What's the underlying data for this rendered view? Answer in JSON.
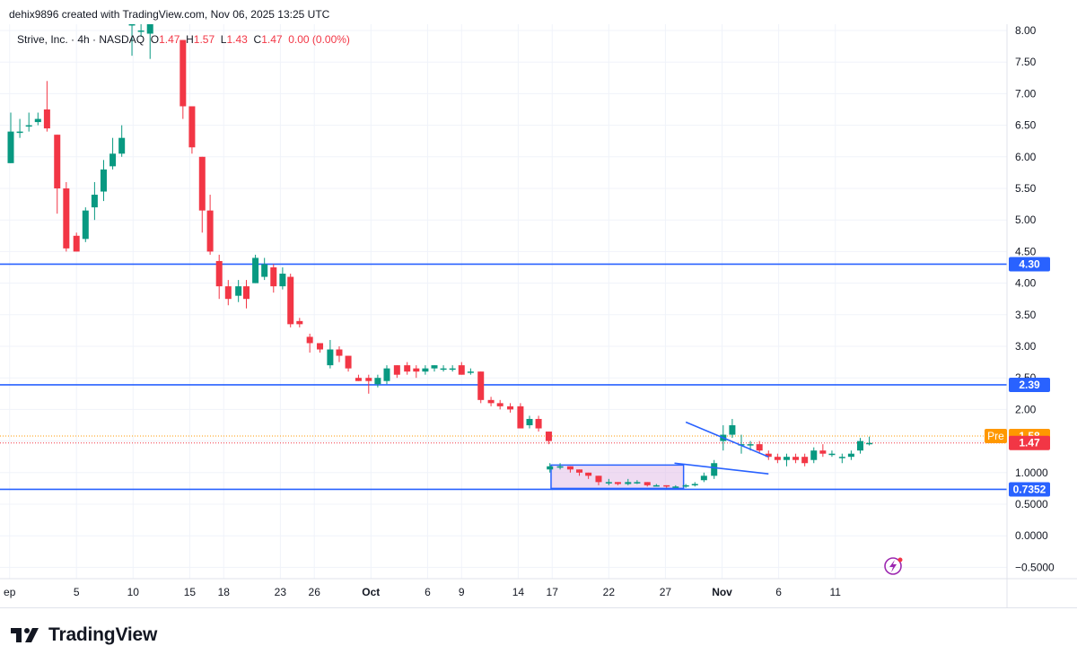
{
  "header": {
    "credit": "dehix9896 created with TradingView.com, Nov 06, 2025 13:25 UTC"
  },
  "legend": {
    "symbol": "Strive, Inc. · 4h · NASDAQ",
    "o_label": "O",
    "o_value": "1.47",
    "h_label": "H",
    "h_value": "1.57",
    "l_label": "L",
    "l_value": "1.43",
    "c_label": "C",
    "c_value": "1.47",
    "change": "0.00 (0.00%)"
  },
  "footer": {
    "brand": "TradingView"
  },
  "colors": {
    "up": "#089981",
    "down": "#f23645",
    "level": "#2962ff",
    "pre": "#ff9800",
    "grid": "#f0f3fa",
    "box_fill": "#e1bee7"
  },
  "chart_data": {
    "type": "candlestick",
    "ylim": [
      -0.6,
      8.05
    ],
    "y_ticks": [
      "8.00",
      "7.50",
      "7.00",
      "6.50",
      "6.00",
      "5.50",
      "5.00",
      "4.50",
      "4.00",
      "3.50",
      "3.00",
      "2.50",
      "2.00",
      "1.50",
      "1.0000",
      "0.5000",
      "0.0000",
      "−0.5000"
    ],
    "y_tick_values": [
      8,
      7.5,
      7,
      6.5,
      6,
      5.5,
      5,
      4.5,
      4,
      3.5,
      3,
      2.5,
      2,
      1.5,
      1,
      0.5,
      0,
      -0.5
    ],
    "x_ticks": [
      {
        "label": "ep",
        "day": -0.9
      },
      {
        "label": "5",
        "day": 5
      },
      {
        "label": "10",
        "day": 10
      },
      {
        "label": "15",
        "day": 15
      },
      {
        "label": "18",
        "day": 18
      },
      {
        "label": "23",
        "day": 23
      },
      {
        "label": "26",
        "day": 26
      },
      {
        "label": "Oct",
        "day": 31
      },
      {
        "label": "6",
        "day": 36
      },
      {
        "label": "9",
        "day": 39
      },
      {
        "label": "14",
        "day": 44
      },
      {
        "label": "17",
        "day": 47
      },
      {
        "label": "22",
        "day": 52
      },
      {
        "label": "27",
        "day": 57
      },
      {
        "label": "Nov",
        "day": 62
      },
      {
        "label": "6",
        "day": 67
      },
      {
        "label": "11",
        "day": 72
      }
    ],
    "candles": [
      [
        5.9,
        6.4,
        6.7,
        5.9
      ],
      [
        6.4,
        6.4,
        6.6,
        6.3
      ],
      [
        6.5,
        6.5,
        6.7,
        6.4
      ],
      [
        6.55,
        6.6,
        6.7,
        6.5
      ],
      [
        6.75,
        6.45,
        7.2,
        6.4
      ],
      [
        6.35,
        5.5,
        6.35,
        5.1
      ],
      [
        5.5,
        4.55,
        5.6,
        4.5
      ],
      [
        4.75,
        4.5,
        4.8,
        4.5
      ],
      [
        4.7,
        5.15,
        5.2,
        4.65
      ],
      [
        5.2,
        5.4,
        5.6,
        5.0
      ],
      [
        5.45,
        5.8,
        5.95,
        5.3
      ],
      [
        5.85,
        6.05,
        6.3,
        5.8
      ],
      [
        6.05,
        6.3,
        6.5,
        6.0
      ],
      [
        8.1,
        8.1,
        8.3,
        7.6
      ],
      [
        8.0,
        8.0,
        8.3,
        7.9
      ],
      [
        7.95,
        8.2,
        8.4,
        7.55
      ],
      [
        7.85,
        6.8,
        7.85,
        6.6
      ],
      [
        6.8,
        6.15,
        6.8,
        6.05
      ],
      [
        6.0,
        5.15,
        6.0,
        4.8
      ],
      [
        5.15,
        4.5,
        5.4,
        4.45
      ],
      [
        4.35,
        3.95,
        4.45,
        3.75
      ],
      [
        3.95,
        3.75,
        4.05,
        3.65
      ],
      [
        3.8,
        3.95,
        4.05,
        3.7
      ],
      [
        3.95,
        3.75,
        4.05,
        3.6
      ],
      [
        4.0,
        4.4,
        4.45,
        4.0
      ],
      [
        4.1,
        4.3,
        4.4,
        4.05
      ],
      [
        4.25,
        3.95,
        4.3,
        3.85
      ],
      [
        3.95,
        4.15,
        4.25,
        3.9
      ],
      [
        4.1,
        3.35,
        4.15,
        3.3
      ],
      [
        3.4,
        3.35,
        3.45,
        3.3
      ],
      [
        3.15,
        3.05,
        3.2,
        2.9
      ],
      [
        3.05,
        2.95,
        3.05,
        2.9
      ],
      [
        2.7,
        2.95,
        3.1,
        2.65
      ],
      [
        2.95,
        2.85,
        3.0,
        2.75
      ],
      [
        2.85,
        2.65,
        2.85,
        2.6
      ],
      [
        2.5,
        2.45,
        2.55,
        2.45
      ],
      [
        2.5,
        2.45,
        2.55,
        2.25
      ],
      [
        2.4,
        2.5,
        2.55,
        2.35
      ],
      [
        2.45,
        2.65,
        2.7,
        2.4
      ],
      [
        2.7,
        2.55,
        2.7,
        2.5
      ],
      [
        2.7,
        2.6,
        2.75,
        2.55
      ],
      [
        2.65,
        2.6,
        2.7,
        2.5
      ],
      [
        2.6,
        2.65,
        2.7,
        2.55
      ],
      [
        2.65,
        2.7,
        2.7,
        2.6
      ],
      [
        2.65,
        2.65,
        2.7,
        2.6
      ],
      [
        2.65,
        2.65,
        2.7,
        2.6
      ],
      [
        2.7,
        2.55,
        2.75,
        2.55
      ],
      [
        2.6,
        2.6,
        2.65,
        2.55
      ],
      [
        2.6,
        2.15,
        2.6,
        2.1
      ],
      [
        2.15,
        2.1,
        2.2,
        2.05
      ],
      [
        2.1,
        2.05,
        2.15,
        2.0
      ],
      [
        2.05,
        2.0,
        2.1,
        1.95
      ],
      [
        2.05,
        1.7,
        2.1,
        1.7
      ],
      [
        1.75,
        1.85,
        1.9,
        1.7
      ],
      [
        1.85,
        1.7,
        1.9,
        1.65
      ],
      [
        1.65,
        1.5,
        1.65,
        1.45
      ],
      [
        1.05,
        1.1,
        1.15,
        1.0
      ],
      [
        1.1,
        1.1,
        1.15,
        1.05
      ],
      [
        1.1,
        1.05,
        1.1,
        1.0
      ],
      [
        1.05,
        1.0,
        1.05,
        0.95
      ],
      [
        1.0,
        0.95,
        1.0,
        0.9
      ],
      [
        0.95,
        0.85,
        0.95,
        0.8
      ],
      [
        0.85,
        0.85,
        0.9,
        0.8
      ],
      [
        0.85,
        0.82,
        0.85,
        0.8
      ],
      [
        0.82,
        0.85,
        0.9,
        0.8
      ],
      [
        0.85,
        0.85,
        0.88,
        0.82
      ],
      [
        0.85,
        0.8,
        0.85,
        0.78
      ],
      [
        0.8,
        0.8,
        0.82,
        0.78
      ],
      [
        0.8,
        0.78,
        0.8,
        0.76
      ],
      [
        0.78,
        0.78,
        0.8,
        0.76
      ],
      [
        0.78,
        0.8,
        0.82,
        0.76
      ],
      [
        0.8,
        0.82,
        0.85,
        0.78
      ],
      [
        0.88,
        0.95,
        1.0,
        0.85
      ],
      [
        0.95,
        1.15,
        1.2,
        0.9
      ],
      [
        1.5,
        1.6,
        1.75,
        1.35
      ],
      [
        1.6,
        1.75,
        1.85,
        1.55
      ],
      [
        1.45,
        1.45,
        1.6,
        1.3
      ],
      [
        1.45,
        1.45,
        1.5,
        1.35
      ],
      [
        1.45,
        1.35,
        1.5,
        1.3
      ],
      [
        1.3,
        1.25,
        1.35,
        1.2
      ],
      [
        1.25,
        1.2,
        1.3,
        1.15
      ],
      [
        1.2,
        1.25,
        1.3,
        1.1
      ],
      [
        1.25,
        1.2,
        1.3,
        1.15
      ],
      [
        1.25,
        1.15,
        1.3,
        1.1
      ],
      [
        1.2,
        1.35,
        1.4,
        1.15
      ],
      [
        1.35,
        1.3,
        1.45,
        1.25
      ],
      [
        1.3,
        1.3,
        1.35,
        1.25
      ],
      [
        1.25,
        1.25,
        1.3,
        1.15
      ],
      [
        1.25,
        1.3,
        1.35,
        1.2
      ],
      [
        1.35,
        1.5,
        1.55,
        1.3
      ],
      [
        1.47,
        1.47,
        1.57,
        1.43
      ]
    ],
    "candle_days": [
      -0.8,
      0,
      0.8,
      1.6,
      2.4,
      3.3,
      4.1,
      5.0,
      5.8,
      6.6,
      7.4,
      8.2,
      9.0,
      9.9,
      10.7,
      11.5,
      14.4,
      15.2,
      16.1,
      16.8,
      17.6,
      18.4,
      19.3,
      20.0,
      20.8,
      21.6,
      22.4,
      23.2,
      23.9,
      24.7,
      25.6,
      26.5,
      27.4,
      28.2,
      29.0,
      29.9,
      30.8,
      31.6,
      32.4,
      33.3,
      34.2,
      35.0,
      35.8,
      36.6,
      37.4,
      38.2,
      39.0,
      39.8,
      40.7,
      41.6,
      42.4,
      43.3,
      44.2,
      45.0,
      45.8,
      46.7,
      46.8,
      47.7,
      48.6,
      49.4,
      50.2,
      51.1,
      52.0,
      52.8,
      53.7,
      54.5,
      55.4,
      56.2,
      57.1,
      57.9,
      58.8,
      59.6,
      60.4,
      61.3,
      62.1,
      62.9,
      63.7,
      64.5,
      65.3,
      66.1,
      66.9,
      67.7,
      68.5,
      69.3,
      70.1,
      70.9,
      71.7,
      72.6,
      73.4,
      74.2,
      75.0
    ],
    "levels": [
      {
        "value": 4.3,
        "label": "4.30"
      },
      {
        "value": 2.39,
        "label": "2.39"
      },
      {
        "value": 0.7352,
        "label": "0.7352"
      }
    ],
    "last_price": {
      "value": 1.47,
      "label": "1.47"
    },
    "pre_market": {
      "value": 1.58,
      "tag": "Pre",
      "label": "1.58"
    },
    "consolidation_box": {
      "x_days": [
        46.9,
        58.6
      ],
      "price": [
        0.75,
        1.12
      ]
    },
    "trendlines": [
      {
        "x_days": [
          58.8,
          66.1
        ],
        "price": [
          1.8,
          1.25
        ]
      },
      {
        "x_days": [
          57.8,
          66.1
        ],
        "price": [
          1.15,
          0.98
        ]
      }
    ]
  }
}
